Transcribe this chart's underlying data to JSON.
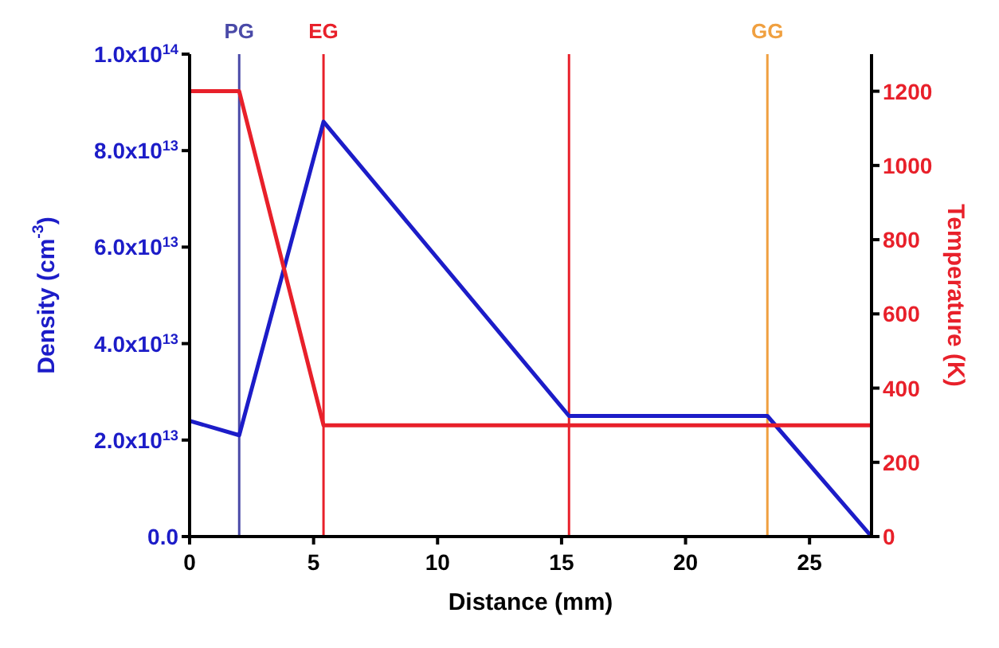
{
  "chart_data": {
    "type": "line",
    "xlabel": "Distance (mm)",
    "ylabel": "Density (cm$^{-3}$)",
    "y2label": "Temperature (K)",
    "series": [
      {
        "color": "#1c1cc8",
        "x": [
          0,
          2,
          5.4,
          15.3,
          23.3,
          27.5
        ],
        "values": [
          24000000000000,
          21000000000000,
          86000000000000,
          25000000000000,
          25000000000000,
          0
        ]
      },
      {
        "color": "#e8202a",
        "axis": "y2",
        "x": [
          0,
          2,
          5.4,
          27.5
        ],
        "values": [
          1200,
          1200,
          300,
          300
        ]
      }
    ],
    "xlim": [
      0,
      27.5
    ],
    "xticks": [
      0,
      5,
      10,
      15,
      20,
      25
    ],
    "ylim": [
      0,
      100000000000000
    ],
    "yticks": [
      {
        "value": 0,
        "label": "0.0"
      },
      {
        "value": 20000000000000,
        "label": "2.0x10$^{13}$"
      },
      {
        "value": 40000000000000,
        "label": "4.0x10$^{13}$"
      },
      {
        "value": 60000000000000,
        "label": "6.0x10$^{13}$"
      },
      {
        "value": 80000000000000,
        "label": "8.0x10$^{13}$"
      },
      {
        "value": 100000000000000,
        "label": "1.0x10$^{14}$"
      }
    ],
    "y2lim": [
      0,
      1300
    ],
    "y2ticks": [
      0,
      200,
      400,
      600,
      800,
      1000,
      1200
    ],
    "ref_lines": [
      {
        "axis": "x",
        "value": 2,
        "label": "PG",
        "color": "#4a4aa8"
      },
      {
        "axis": "x",
        "value": 5.4,
        "label": "EG",
        "color": "#e8202a"
      },
      {
        "axis": "x",
        "value": 15.3,
        "label": null,
        "color": "#e8202a"
      },
      {
        "axis": "x",
        "value": 23.3,
        "label": "GG",
        "color": "#f0a040"
      }
    ]
  }
}
